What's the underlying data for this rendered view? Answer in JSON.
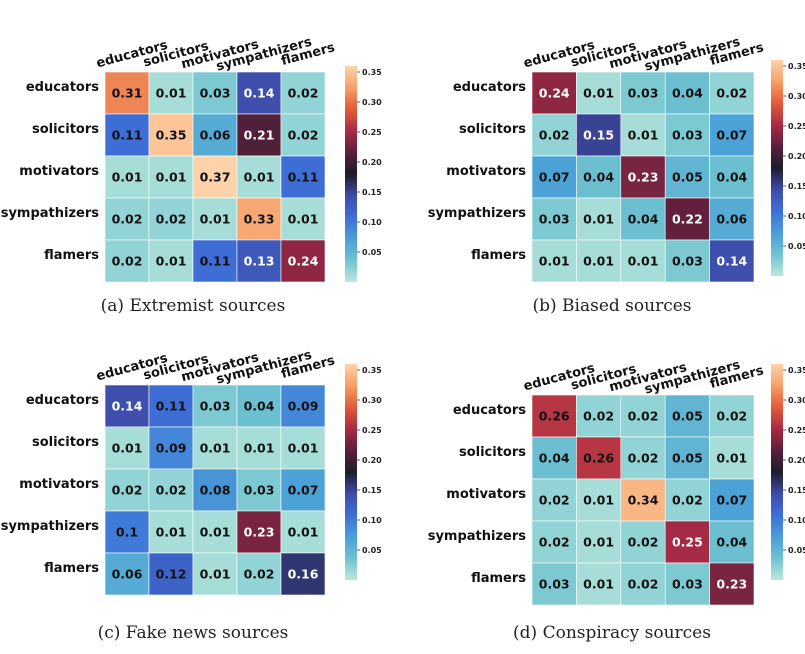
{
  "colorbar_ticks": [
    "0.05",
    "0.10",
    "0.15",
    "0.20",
    "0.25",
    "0.30",
    "0.35"
  ],
  "colormap": {
    "name": "icefire",
    "stops": [
      [
        0.0,
        "#bde7db"
      ],
      [
        0.1,
        "#6fc3d0"
      ],
      [
        0.2,
        "#4a9fd7"
      ],
      [
        0.3,
        "#3d6fd8"
      ],
      [
        0.4,
        "#3e4ba7"
      ],
      [
        0.5,
        "#1c1c2d"
      ],
      [
        0.6,
        "#5a1f3c"
      ],
      [
        0.7,
        "#a92b46"
      ],
      [
        0.8,
        "#e25b3a"
      ],
      [
        0.9,
        "#f6a068"
      ],
      [
        1.0,
        "#ffd3aa"
      ]
    ]
  },
  "chart_data": [
    {
      "type": "heatmap",
      "caption": "(a) Extremist sources",
      "rows": [
        "educators",
        "solicitors",
        "motivators",
        "sympathizers",
        "flamers"
      ],
      "columns": [
        "educators",
        "solicitors",
        "motivators",
        "sympathizers",
        "flamers"
      ],
      "values": [
        [
          0.31,
          0.01,
          0.03,
          0.14,
          0.02
        ],
        [
          0.11,
          0.35,
          0.06,
          0.21,
          0.02
        ],
        [
          0.01,
          0.01,
          0.37,
          0.01,
          0.11
        ],
        [
          0.02,
          0.02,
          0.01,
          0.33,
          0.01
        ],
        [
          0.02,
          0.01,
          0.11,
          0.13,
          0.24
        ]
      ],
      "labels": [
        [
          "0.31",
          "0.01",
          "0.03",
          "0.14",
          "0.02"
        ],
        [
          "0.11",
          "0.35",
          "0.06",
          "0.21",
          "0.02"
        ],
        [
          "0.01",
          "0.01",
          "0.37",
          "0.01",
          "0.11"
        ],
        [
          "0.02",
          "0.02",
          "0.01",
          "0.33",
          "0.01"
        ],
        [
          "0.02",
          "0.01",
          "0.11",
          "0.13",
          "0.24"
        ]
      ],
      "vmin": 0.0,
      "vmax": 0.36
    },
    {
      "type": "heatmap",
      "caption": "(b) Biased sources",
      "rows": [
        "educators",
        "solicitors",
        "motivators",
        "sympathizers",
        "flamers"
      ],
      "columns": [
        "educators",
        "solicitors",
        "motivators",
        "sympathizers",
        "flamers"
      ],
      "values": [
        [
          0.24,
          0.01,
          0.03,
          0.04,
          0.02
        ],
        [
          0.02,
          0.15,
          0.01,
          0.03,
          0.07
        ],
        [
          0.07,
          0.04,
          0.23,
          0.05,
          0.04
        ],
        [
          0.03,
          0.01,
          0.04,
          0.22,
          0.06
        ],
        [
          0.01,
          0.01,
          0.01,
          0.03,
          0.14
        ]
      ],
      "labels": [
        [
          "0.24",
          "0.01",
          "0.03",
          "0.04",
          "0.02"
        ],
        [
          "0.02",
          "0.15",
          "0.01",
          "0.03",
          "0.07"
        ],
        [
          "0.07",
          "0.04",
          "0.23",
          "0.05",
          "0.04"
        ],
        [
          "0.03",
          "0.01",
          "0.04",
          "0.22",
          "0.06"
        ],
        [
          "0.01",
          "0.01",
          "0.01",
          "0.03",
          "0.14"
        ]
      ],
      "vmin": 0.0,
      "vmax": 0.36
    },
    {
      "type": "heatmap",
      "caption": "(c) Fake news sources",
      "rows": [
        "educators",
        "solicitors",
        "motivators",
        "sympathizers",
        "flamers"
      ],
      "columns": [
        "educators",
        "solicitors",
        "motivators",
        "sympathizers",
        "flamers"
      ],
      "values": [
        [
          0.14,
          0.11,
          0.03,
          0.04,
          0.09
        ],
        [
          0.01,
          0.09,
          0.01,
          0.01,
          0.01
        ],
        [
          0.02,
          0.02,
          0.08,
          0.03,
          0.07
        ],
        [
          0.1,
          0.01,
          0.01,
          0.23,
          0.01
        ],
        [
          0.06,
          0.12,
          0.01,
          0.02,
          0.16
        ]
      ],
      "labels": [
        [
          "0.14",
          "0.11",
          "0.03",
          "0.04",
          "0.09"
        ],
        [
          "0.01",
          "0.09",
          "0.01",
          "0.01",
          "0.01"
        ],
        [
          "0.02",
          "0.02",
          "0.08",
          "0.03",
          "0.07"
        ],
        [
          "0.1",
          "0.01",
          "0.01",
          "0.23",
          "0.01"
        ],
        [
          "0.06",
          "0.12",
          "0.01",
          "0.02",
          "0.16"
        ]
      ],
      "vmin": 0.0,
      "vmax": 0.36
    },
    {
      "type": "heatmap",
      "caption": "(d) Conspiracy sources",
      "rows": [
        "educators",
        "solicitors",
        "motivators",
        "sympathizers",
        "flamers"
      ],
      "columns": [
        "educators",
        "solicitors",
        "motivators",
        "sympathizers",
        "flamers"
      ],
      "values": [
        [
          0.26,
          0.02,
          0.02,
          0.05,
          0.02
        ],
        [
          0.04,
          0.26,
          0.02,
          0.05,
          0.01
        ],
        [
          0.02,
          0.01,
          0.34,
          0.02,
          0.07
        ],
        [
          0.02,
          0.01,
          0.02,
          0.25,
          0.04
        ],
        [
          0.03,
          0.01,
          0.02,
          0.03,
          0.23
        ]
      ],
      "labels": [
        [
          "0.26",
          "0.02",
          "0.02",
          "0.05",
          "0.02"
        ],
        [
          "0.04",
          "0.26",
          "0.02",
          "0.05",
          "0.01"
        ],
        [
          "0.02",
          "0.01",
          "0.34",
          "0.02",
          "0.07"
        ],
        [
          "0.02",
          "0.01",
          "0.02",
          "0.25",
          "0.04"
        ],
        [
          "0.03",
          "0.01",
          "0.02",
          "0.03",
          "0.23"
        ]
      ],
      "vmin": 0.0,
      "vmax": 0.36
    }
  ]
}
